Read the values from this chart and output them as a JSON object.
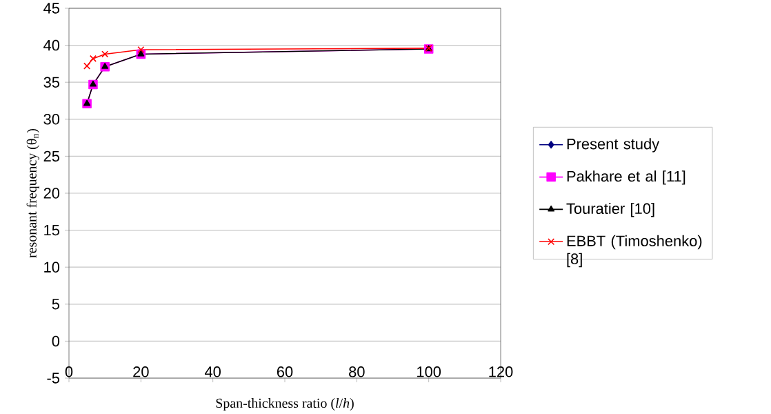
{
  "chart_data": {
    "type": "line",
    "xlabel": "Span-thickness ratio (*l*/*h*)",
    "ylabel": "resonant frequency (θ$_{n}$)",
    "x": [
      5,
      6.7,
      10,
      20,
      100
    ],
    "series": [
      {
        "name": "Present study",
        "color": "#000080",
        "marker": "diamond",
        "values": [
          null,
          null,
          null,
          null,
          null
        ]
      },
      {
        "name": "Pakhare et al [11]",
        "color": "#ff00ff",
        "marker": "square",
        "values": [
          32.1,
          34.7,
          37.1,
          38.8,
          39.5
        ]
      },
      {
        "name": "Touratier [10]",
        "color": "#000000",
        "marker": "triangle",
        "values": [
          32.1,
          34.7,
          37.1,
          38.8,
          39.5
        ]
      },
      {
        "name": "EBBT (Timoshenko) [8]",
        "color": "#ff0000",
        "marker": "cross",
        "values": [
          37.2,
          38.2,
          38.8,
          39.4,
          39.6
        ]
      }
    ],
    "xlim": [
      0,
      120
    ],
    "xticks": [
      0,
      20,
      40,
      60,
      80,
      100,
      120
    ],
    "ylim": [
      -5,
      45
    ],
    "yticks": [
      -5,
      0,
      5,
      10,
      15,
      20,
      25,
      30,
      35,
      40,
      45
    ],
    "grid": "y",
    "legend": "right",
    "line_style": "solid"
  }
}
